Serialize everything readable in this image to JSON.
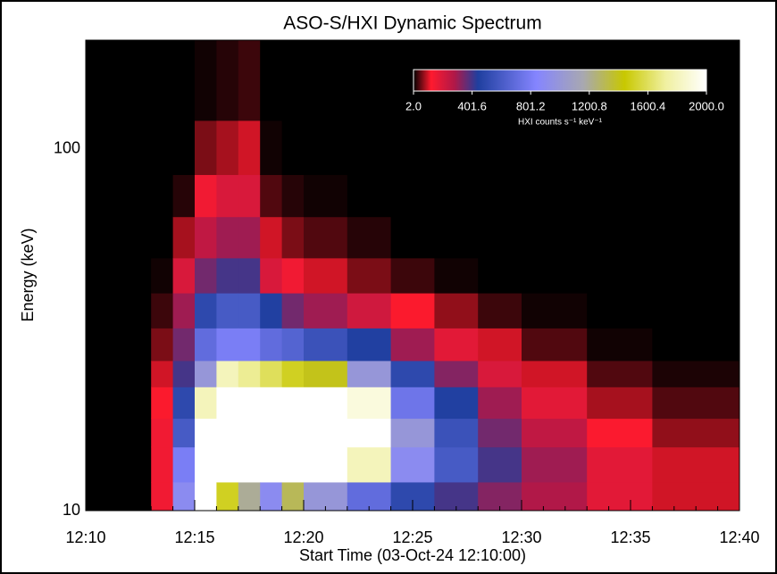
{
  "chart_data": {
    "type": "heatmap",
    "title": "ASO-S/HXI Dynamic Spectrum",
    "x_label": "Start Time (03-Oct-24 12:10:00)",
    "y_label": "Energy (keV)",
    "colorbar_label": "HXI counts s⁻¹ keV⁻¹",
    "xlim": [
      0,
      30
    ],
    "xticks": [
      {
        "value": 0,
        "label": "12:10"
      },
      {
        "value": 5,
        "label": "12:15"
      },
      {
        "value": 10,
        "label": "12:20"
      },
      {
        "value": 15,
        "label": "12:25"
      },
      {
        "value": 20,
        "label": "12:30"
      },
      {
        "value": 25,
        "label": "12:35"
      },
      {
        "value": 30,
        "label": "12:40"
      }
    ],
    "ylim": [
      10,
      200
    ],
    "yticks": [
      10,
      100
    ],
    "y_log": true,
    "zlim": [
      2,
      2000
    ],
    "zticks": [
      {
        "value": 2,
        "label": "2.0"
      },
      {
        "value": 401.6,
        "label": "401.6"
      },
      {
        "value": 801.2,
        "label": "801.2"
      },
      {
        "value": 1200.8,
        "label": "1200.8"
      },
      {
        "value": 1600.4,
        "label": "1600.4"
      },
      {
        "value": 2000,
        "label": "2000.0"
      }
    ],
    "x_bins": [
      0,
      3,
      4,
      5,
      6,
      7,
      8,
      9,
      10,
      12,
      14,
      16,
      18,
      20,
      23,
      26,
      30
    ],
    "y_bins": [
      10,
      12,
      15,
      18,
      22,
      26,
      32,
      40,
      50,
      65,
      85,
      120,
      200
    ],
    "values": [
      [
        0,
        0,
        0,
        0,
        0,
        0,
        0,
        0,
        0,
        0,
        0,
        0
      ],
      [
        150,
        150,
        150,
        120,
        100,
        60,
        30,
        10,
        0,
        0,
        0,
        0
      ],
      [
        900,
        800,
        600,
        500,
        400,
        350,
        300,
        200,
        80,
        20,
        0,
        0
      ],
      [
        2000,
        2000,
        2000,
        1800,
        1000,
        700,
        500,
        350,
        250,
        150,
        60,
        10
      ],
      [
        1500,
        2000,
        2000,
        2000,
        1800,
        800,
        600,
        400,
        300,
        200,
        80,
        20
      ],
      [
        1200,
        2000,
        2000,
        2000,
        1700,
        800,
        600,
        400,
        300,
        200,
        100,
        30
      ],
      [
        900,
        2000,
        2000,
        2000,
        1600,
        700,
        450,
        200,
        100,
        40,
        10,
        0
      ],
      [
        1300,
        2000,
        2000,
        2000,
        1500,
        650,
        350,
        150,
        60,
        20,
        0,
        0
      ],
      [
        1000,
        2000,
        2000,
        2000,
        1400,
        550,
        300,
        100,
        40,
        10,
        0,
        0
      ],
      [
        700,
        1800,
        2000,
        1900,
        1000,
        450,
        220,
        60,
        20,
        0,
        0,
        0
      ],
      [
        500,
        900,
        1000,
        750,
        500,
        300,
        120,
        30,
        0,
        0,
        0,
        0
      ],
      [
        400,
        600,
        550,
        450,
        330,
        180,
        70,
        10,
        0,
        0,
        0,
        0
      ],
      [
        330,
        400,
        350,
        300,
        200,
        100,
        30,
        0,
        0,
        0,
        0,
        0
      ],
      [
        280,
        300,
        250,
        180,
        100,
        40,
        10,
        0,
        0,
        0,
        0,
        0
      ],
      [
        180,
        180,
        130,
        80,
        40,
        10,
        0,
        0,
        0,
        0,
        0,
        0
      ],
      [
        100,
        100,
        70,
        40,
        15,
        0,
        0,
        0,
        0,
        0,
        0,
        0
      ]
    ]
  }
}
